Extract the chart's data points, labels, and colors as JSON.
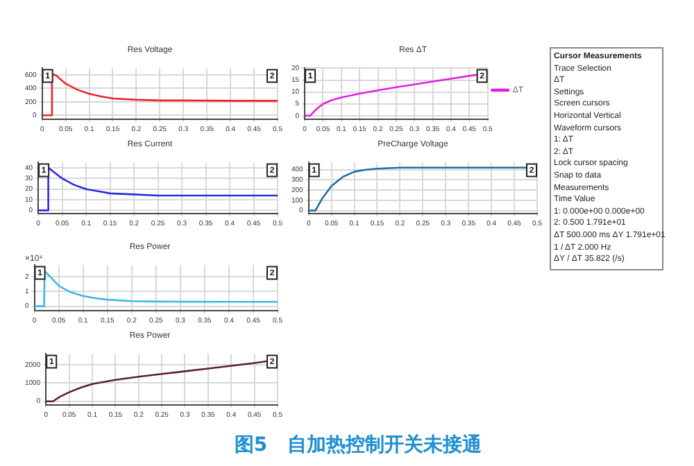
{
  "chart_data": [
    {
      "type": "line",
      "title": "Res Voltage",
      "x": [
        0,
        0.02,
        0.021,
        0.03,
        0.05,
        0.075,
        0.1,
        0.125,
        0.15,
        0.2,
        0.25,
        0.3,
        0.4,
        0.5
      ],
      "series": [
        {
          "color": "#e8262a",
          "values": [
            0,
            0,
            620,
            590,
            470,
            380,
            320,
            280,
            250,
            230,
            220,
            220,
            215,
            215
          ]
        }
      ],
      "xlim": [
        0,
        0.5
      ],
      "xticks": [
        0,
        0.05,
        0.1,
        0.15,
        0.2,
        0.25,
        0.3,
        0.35,
        0.4,
        0.45,
        0.5
      ],
      "ylim": [
        -60,
        700
      ],
      "yticks": [
        0,
        200,
        400,
        600
      ],
      "grid": true,
      "annotations": [
        "1",
        "2"
      ]
    },
    {
      "type": "line",
      "title": "Res ΔT",
      "x": [
        0,
        0.015,
        0.03,
        0.05,
        0.075,
        0.1,
        0.15,
        0.2,
        0.25,
        0.3,
        0.35,
        0.4,
        0.45,
        0.5
      ],
      "series": [
        {
          "name": "ΔT",
          "color": "#e020e0",
          "values": [
            0,
            0,
            2.5,
            5,
            6.6,
            7.7,
            9.3,
            10.7,
            12,
            13.2,
            14.4,
            15.6,
            16.8,
            17.9
          ]
        }
      ],
      "xlim": [
        0,
        0.5
      ],
      "xticks": [
        0,
        0.05,
        0.1,
        0.15,
        0.2,
        0.25,
        0.3,
        0.35,
        0.4,
        0.45,
        0.5
      ],
      "ylim": [
        -1.5,
        20
      ],
      "yticks": [
        0,
        5,
        10,
        15,
        20
      ],
      "grid": true,
      "legend": "right",
      "annotations": [
        "1",
        "2"
      ]
    },
    {
      "type": "line",
      "title": "Res Current",
      "x": [
        0,
        0.02,
        0.021,
        0.03,
        0.05,
        0.075,
        0.1,
        0.125,
        0.15,
        0.2,
        0.25,
        0.3,
        0.4,
        0.5
      ],
      "series": [
        {
          "color": "#2a2ae0",
          "values": [
            0,
            0,
            40,
            37,
            30,
            24,
            20,
            18,
            16,
            15,
            14,
            14,
            14,
            14
          ]
        }
      ],
      "xlim": [
        0,
        0.5
      ],
      "xticks": [
        0,
        0.05,
        0.1,
        0.15,
        0.2,
        0.25,
        0.3,
        0.35,
        0.4,
        0.45,
        0.5
      ],
      "ylim": [
        -3,
        45
      ],
      "yticks": [
        0,
        10,
        20,
        30,
        40
      ],
      "grid": true,
      "annotations": [
        "1",
        "2"
      ]
    },
    {
      "type": "line",
      "title": "PreCharge Voltage",
      "x": [
        0,
        0.015,
        0.03,
        0.05,
        0.075,
        0.1,
        0.125,
        0.15,
        0.2,
        0.3,
        0.5
      ],
      "series": [
        {
          "color": "#1f6f9f",
          "values": [
            0,
            0,
            120,
            240,
            330,
            380,
            400,
            410,
            420,
            420,
            420
          ]
        }
      ],
      "xlim": [
        0,
        0.5
      ],
      "xticks": [
        0,
        0.05,
        0.1,
        0.15,
        0.2,
        0.25,
        0.3,
        0.35,
        0.4,
        0.45,
        0.5
      ],
      "ylim": [
        -30,
        470
      ],
      "yticks": [
        0,
        100,
        200,
        300,
        400
      ],
      "grid": true,
      "annotations": [
        "1",
        "2"
      ]
    },
    {
      "type": "line",
      "title": "Res Power",
      "x": [
        0,
        0.02,
        0.021,
        0.03,
        0.05,
        0.075,
        0.1,
        0.125,
        0.15,
        0.2,
        0.25,
        0.3,
        0.4,
        0.5
      ],
      "series": [
        {
          "color": "#3cb8e8",
          "values": [
            0,
            0,
            2.4,
            2.1,
            1.4,
            0.95,
            0.7,
            0.55,
            0.45,
            0.35,
            0.32,
            0.31,
            0.3,
            0.3
          ]
        }
      ],
      "xlim": [
        0,
        0.5
      ],
      "xticks": [
        0,
        0.05,
        0.1,
        0.15,
        0.2,
        0.25,
        0.3,
        0.35,
        0.4,
        0.45,
        0.5
      ],
      "ylim": [
        -0.3,
        2.8
      ],
      "yticks": [
        0,
        1,
        2
      ],
      "grid": true,
      "ylabel": "×10⁴",
      "annotations": [
        "1",
        "2"
      ]
    },
    {
      "type": "line",
      "title": "Res Power",
      "x": [
        0,
        0.015,
        0.03,
        0.05,
        0.075,
        0.1,
        0.15,
        0.2,
        0.25,
        0.3,
        0.35,
        0.4,
        0.45,
        0.5
      ],
      "series": [
        {
          "color": "#5a2030",
          "values": [
            0,
            0,
            250,
            500,
            750,
            950,
            1180,
            1350,
            1500,
            1650,
            1800,
            1950,
            2100,
            2280
          ]
        }
      ],
      "xlim": [
        0,
        0.5
      ],
      "xticks": [
        0,
        0.05,
        0.1,
        0.15,
        0.2,
        0.25,
        0.3,
        0.35,
        0.4,
        0.45,
        0.5
      ],
      "ylim": [
        -200,
        2600
      ],
      "yticks": [
        0,
        1000,
        2000
      ],
      "grid": true,
      "annotations": [
        "1",
        "2"
      ]
    },
    {
      "type": "other",
      "title": "Cursor Measurements",
      "annotations": [
        "Trace Selection",
        "ΔT",
        "Settings",
        "Screen cursors",
        "Horizontal   Vertical",
        "Waveform cursors",
        "1:  ΔT",
        "2:  ΔT",
        "Lock cursor spacing",
        "Snap to data",
        "Measurements",
        "Time   Value",
        "1:  0.000e+00   0.000e+00",
        "2:  0.500   1.791e+01",
        "ΔT  500.000 ms  ΔY  1.791e+01",
        "1 / ΔT   2.000 Hz",
        "ΔY / ΔT   35.822 (/s)"
      ]
    },
    {
      "type": "other",
      "title": "图5   自加热控制开关未接通"
    }
  ]
}
